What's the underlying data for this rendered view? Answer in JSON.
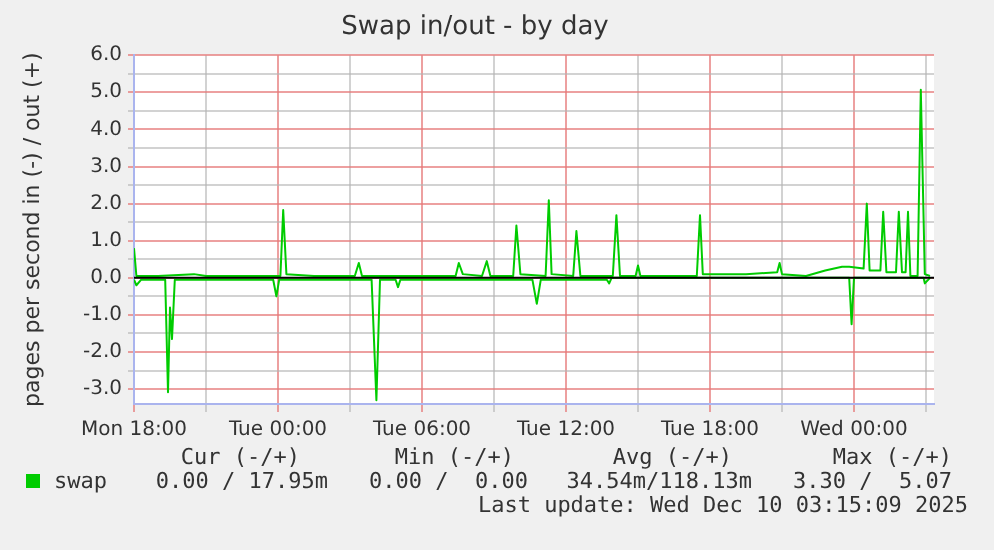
{
  "chart_data": {
    "type": "line",
    "title": "Swap in/out - by day",
    "ylabel": "pages per second in (-) / out (+)",
    "xlim": [
      "2025-12-08T18:00",
      "2025-12-10T03:20"
    ],
    "xticks": [
      {
        "value": "2025-12-08T18:00",
        "label": "Mon 18:00"
      },
      {
        "value": "2025-12-08T21:00",
        "label": null
      },
      {
        "value": "2025-12-09T00:00",
        "label": "Tue 00:00"
      },
      {
        "value": "2025-12-09T03:00",
        "label": null
      },
      {
        "value": "2025-12-09T06:00",
        "label": "Tue 06:00"
      },
      {
        "value": "2025-12-09T09:00",
        "label": null
      },
      {
        "value": "2025-12-09T12:00",
        "label": "Tue 12:00"
      },
      {
        "value": "2025-12-09T15:00",
        "label": null
      },
      {
        "value": "2025-12-09T18:00",
        "label": "Tue 18:00"
      },
      {
        "value": "2025-12-09T21:00",
        "label": null
      },
      {
        "value": "2025-12-10T00:00",
        "label": "Wed 00:00"
      },
      {
        "value": "2025-12-10T03:00",
        "label": null
      }
    ],
    "ylim": [
      -3.4,
      6.0
    ],
    "yticks": [
      {
        "value": -3,
        "label": "-3.0"
      },
      {
        "value": -2.5,
        "label": null
      },
      {
        "value": -2,
        "label": "-2.0"
      },
      {
        "value": -1.5,
        "label": null
      },
      {
        "value": -1,
        "label": "-1.0"
      },
      {
        "value": -0.5,
        "label": null
      },
      {
        "value": 0,
        "label": "0.0"
      },
      {
        "value": 0.5,
        "label": null
      },
      {
        "value": 1,
        "label": "1.0"
      },
      {
        "value": 1.5,
        "label": null
      },
      {
        "value": 2,
        "label": "2.0"
      },
      {
        "value": 2.5,
        "label": null
      },
      {
        "value": 3,
        "label": "3.0"
      },
      {
        "value": 3.5,
        "label": null
      },
      {
        "value": 4,
        "label": "4.0"
      },
      {
        "value": 4.5,
        "label": null
      },
      {
        "value": 5,
        "label": "5.0"
      },
      {
        "value": 5.5,
        "label": null
      },
      {
        "value": 6,
        "label": "6.0"
      }
    ],
    "grid": true,
    "legend": "bottom left",
    "marker": "none",
    "line_style": "solid",
    "ref_lines": [
      {
        "axis": "y",
        "value": 0,
        "color": "#000000"
      }
    ],
    "series": [
      {
        "name": "swap",
        "color": "#00cc00",
        "x": [
          "2025-12-08T18:00",
          "2025-12-08T18:06",
          "2025-12-08T19:00",
          "2025-12-08T20:30",
          "2025-12-08T21:00",
          "2025-12-08T23:54",
          "2025-12-09T00:06",
          "2025-12-09T00:13",
          "2025-12-09T00:21",
          "2025-12-09T01:30",
          "2025-12-09T03:12",
          "2025-12-09T03:22",
          "2025-12-09T03:30",
          "2025-12-09T05:30",
          "2025-12-09T07:24",
          "2025-12-09T07:32",
          "2025-12-09T07:42",
          "2025-12-09T08:30",
          "2025-12-09T08:42",
          "2025-12-09T08:51",
          "2025-12-09T09:48",
          "2025-12-09T09:56",
          "2025-12-09T10:06",
          "2025-12-09T11:09",
          "2025-12-09T11:17",
          "2025-12-09T11:24",
          "2025-12-09T12:18",
          "2025-12-09T12:26",
          "2025-12-09T12:36",
          "2025-12-09T13:57",
          "2025-12-09T14:06",
          "2025-12-09T14:15",
          "2025-12-09T14:54",
          "2025-12-09T15:00",
          "2025-12-09T15:06",
          "2025-12-09T17:27",
          "2025-12-09T17:35",
          "2025-12-09T17:42",
          "2025-12-09T19:30",
          "2025-12-09T20:48",
          "2025-12-09T20:54",
          "2025-12-09T21:00",
          "2025-12-09T22:00",
          "2025-12-09T22:48",
          "2025-12-09T23:30",
          "2025-12-09T23:48",
          "2025-12-10T00:24",
          "2025-12-10T00:32",
          "2025-12-10T00:39",
          "2025-12-10T01:06",
          "2025-12-10T01:13",
          "2025-12-10T01:21",
          "2025-12-10T01:45",
          "2025-12-10T01:52",
          "2025-12-10T02:00",
          "2025-12-10T02:09",
          "2025-12-10T02:15",
          "2025-12-10T02:21",
          "2025-12-10T02:39",
          "2025-12-10T02:47",
          "2025-12-10T02:57",
          "2025-12-10T03:10"
        ],
        "values": [
          0.8,
          0.05,
          0.05,
          0.1,
          0.05,
          0.05,
          0.05,
          1.83,
          0.1,
          0.05,
          0.05,
          0.4,
          0.05,
          0.05,
          0.05,
          0.4,
          0.1,
          0.05,
          0.45,
          0.05,
          0.05,
          1.41,
          0.1,
          0.05,
          2.09,
          0.1,
          0.05,
          1.26,
          0.05,
          0.05,
          1.69,
          0.05,
          0.05,
          0.33,
          0.05,
          0.05,
          1.69,
          0.1,
          0.1,
          0.15,
          0.4,
          0.1,
          0.05,
          0.2,
          0.3,
          0.3,
          0.25,
          2.0,
          0.2,
          0.2,
          1.78,
          0.15,
          0.15,
          1.78,
          0.15,
          0.15,
          1.78,
          0.05,
          0.05,
          5.07,
          0.1,
          0.05
        ]
      },
      {
        "color": "#00cc00",
        "x": [
          "2025-12-08T18:00",
          "2025-12-08T18:06",
          "2025-12-08T18:18",
          "2025-12-08T19:18",
          "2025-12-08T19:25",
          "2025-12-08T19:30",
          "2025-12-08T19:35",
          "2025-12-08T19:42",
          "2025-12-08T23:48",
          "2025-12-08T23:56",
          "2025-12-09T00:03",
          "2025-12-09T03:54",
          "2025-12-09T04:06",
          "2025-12-09T04:15",
          "2025-12-09T04:54",
          "2025-12-09T05:00",
          "2025-12-09T05:06",
          "2025-12-09T10:36",
          "2025-12-09T10:47",
          "2025-12-09T10:57",
          "2025-12-09T13:42",
          "2025-12-09T13:48",
          "2025-12-09T13:54",
          "2025-12-09T23:48",
          "2025-12-09T23:54",
          "2025-12-10T00:00",
          "2025-12-10T02:54",
          "2025-12-10T02:57",
          "2025-12-10T03:10"
        ],
        "values": [
          -0.05,
          -0.2,
          -0.05,
          -0.05,
          -3.08,
          -0.8,
          -1.65,
          -0.05,
          -0.05,
          -0.5,
          -0.05,
          -0.05,
          -3.3,
          -0.05,
          -0.05,
          -0.25,
          -0.05,
          -0.05,
          -0.7,
          -0.05,
          -0.05,
          -0.15,
          0,
          0,
          -1.25,
          0,
          0,
          -0.15,
          0
        ]
      }
    ],
    "annotations": [
      "Cur (-/+)",
      "Min (-/+)",
      "Avg (-/+)",
      "Max (-/+)",
      "0.00 / 17.95m",
      "0.00 /  0.00",
      "34.54m/118.13m",
      "3.30 /  5.07",
      "Last update: Wed Dec 10 03:15:09 2025"
    ]
  }
}
